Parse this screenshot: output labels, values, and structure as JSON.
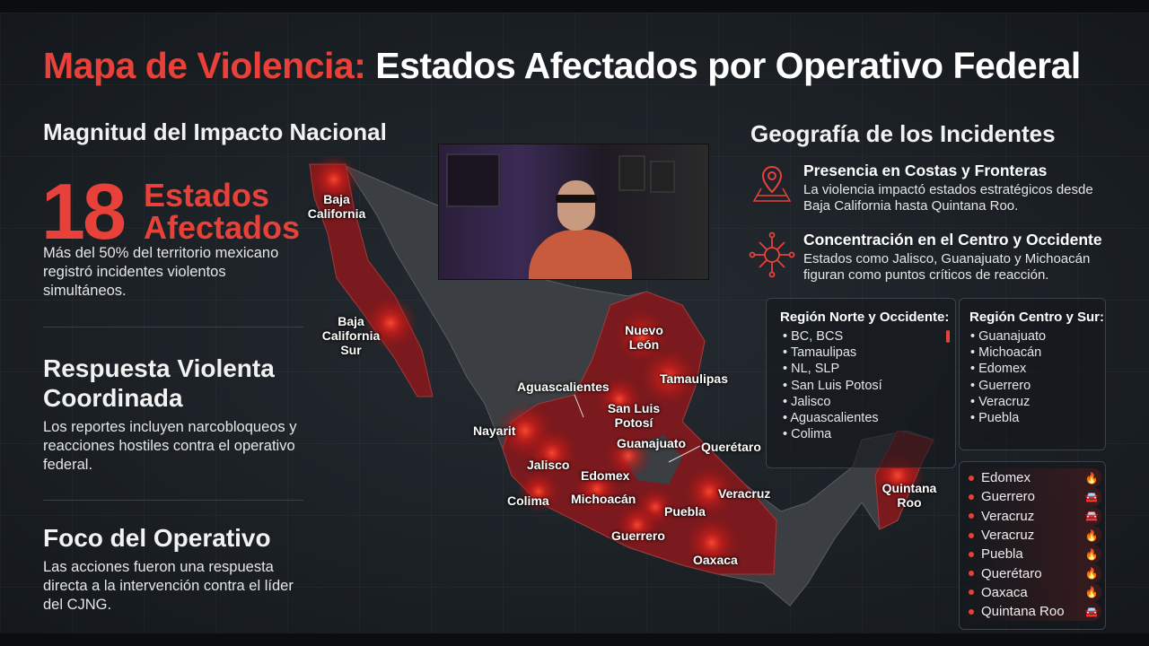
{
  "title": {
    "highlight": "Mapa de Violencia:",
    "rest": "Estados Afectados por Operativo Federal"
  },
  "left": {
    "section1": {
      "heading": "Magnitud del Impacto Nacional",
      "number": "18",
      "number_label_1": "Estados",
      "number_label_2": "Afectados",
      "text": "Más del 50% del territorio mexicano registró incidentes violentos simultáneos."
    },
    "section2": {
      "heading_1": "Respuesta Violenta",
      "heading_2": "Coordinada",
      "text": "Los reportes incluyen narcobloqueos y reacciones hostiles contra el operativo federal."
    },
    "section3": {
      "heading": "Foco del Operativo",
      "text": "Las acciones fueron una respuesta directa a la intervención contra el líder del CJNG."
    }
  },
  "map": {
    "labels": {
      "bc": "Baja California",
      "bcs": "Baja California Sur",
      "nl": "Nuevo León",
      "tamps": "Tamaulipas",
      "ags": "Aguascalientes",
      "slp": "San Luis Potosí",
      "nay": "Nayarit",
      "gto": "Guanajuato",
      "qro": "Querétaro",
      "jal": "Jalisco",
      "edomex": "Edomex",
      "ver": "Veracruz",
      "col": "Colima",
      "mich": "Michoacán",
      "pue": "Puebla",
      "gro": "Guerrero",
      "oax": "Oaxaca",
      "qroo": "Quintana Roo"
    },
    "colors": {
      "affected": "#7a1a1e",
      "unaffected": "#3b3e42",
      "glow": "#ff2a1a"
    }
  },
  "right": {
    "heading": "Geografía de los Incidentes",
    "items": [
      {
        "icon": "map-pin-icon",
        "title": "Presencia en Costas y Fronteras",
        "text": "La violencia impactó estados estratégicos desde Baja California hasta Quintana Roo."
      },
      {
        "icon": "network-hub-icon",
        "title": "Concentración en el Centro y Occidente",
        "text": "Estados como Jalisco, Guanajuato y Michoacán figuran como puntos críticos de reacción."
      }
    ],
    "regions": [
      {
        "title": "Región Norte y Occidente:",
        "items": [
          "BC, BCS",
          "Tamaulipas",
          "NL, SLP",
          "San Luis Potosí",
          "Jalisco",
          "Aguascalientes",
          "Colima"
        ]
      },
      {
        "title": "Región Centro y Sur:",
        "items": [
          "Guanajuato",
          "Michoacán",
          "Edomex",
          "Guerrero",
          "Veracruz",
          "Puebla"
        ]
      }
    ],
    "incidents": [
      {
        "state": "Edomex",
        "icon": "fire-icon"
      },
      {
        "state": "Guerrero",
        "icon": "burning-car-icon"
      },
      {
        "state": "Veracruz",
        "icon": "burning-car-icon"
      },
      {
        "state": "Veracruz",
        "icon": "fire-icon"
      },
      {
        "state": "Puebla",
        "icon": "fire-icon"
      },
      {
        "state": "Querétaro",
        "icon": "fire-icon"
      },
      {
        "state": "Oaxaca",
        "icon": "fire-icon"
      },
      {
        "state": "Quintana Roo",
        "icon": "burning-car-icon"
      }
    ]
  },
  "accent": "#e8413a"
}
